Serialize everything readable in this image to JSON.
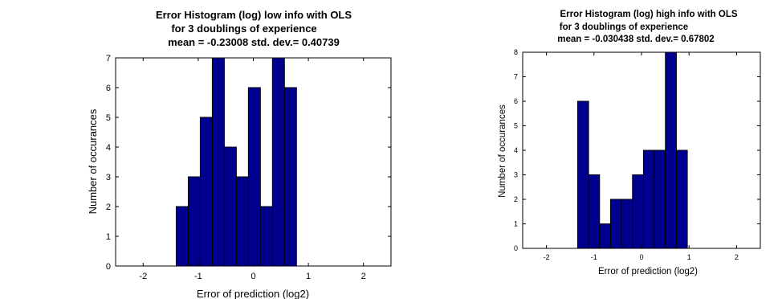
{
  "chart_data": [
    {
      "type": "bar",
      "title_lines": [
        "Error Histogram (log) low info with OLS",
        "for 3 doublings of experience",
        "mean = -0.23008 std. dev.= 0.40739"
      ],
      "xlabel": "Error of prediction (log2)",
      "ylabel": "Number of occurances",
      "xlim": [
        -2.5,
        2.5
      ],
      "ylim": [
        0,
        7
      ],
      "xticks": [
        -2,
        -1,
        0,
        1,
        2
      ],
      "yticks": [
        0,
        1,
        2,
        3,
        4,
        5,
        6,
        7
      ],
      "bin_width": 0.2184,
      "bins": [
        {
          "x": -1.2908,
          "value": 2
        },
        {
          "x": -1.0724,
          "value": 3
        },
        {
          "x": -0.854,
          "value": 5
        },
        {
          "x": -0.6356,
          "value": 7
        },
        {
          "x": -0.4172,
          "value": 4
        },
        {
          "x": -0.1988,
          "value": 3
        },
        {
          "x": 0.0196,
          "value": 6
        },
        {
          "x": 0.238,
          "value": 2
        },
        {
          "x": 0.4564,
          "value": 7
        },
        {
          "x": 0.6748,
          "value": 6
        }
      ],
      "bar_color": "#00008f",
      "grid": false
    },
    {
      "type": "bar",
      "title_lines": [
        "Error Histogram (log) high info with OLS",
        "for 3 doublings of experience",
        "mean = -0.030438 std. dev.= 0.67802"
      ],
      "xlabel": "Error of prediction (log2)",
      "ylabel": "Number of occurances",
      "xlim": [
        -2.5,
        2.5
      ],
      "ylim": [
        0,
        8
      ],
      "xticks": [
        -2,
        -1,
        0,
        1,
        2
      ],
      "yticks": [
        0,
        1,
        2,
        3,
        4,
        5,
        6,
        7,
        8
      ],
      "bin_width": 0.2308,
      "bins": [
        {
          "x": -1.2285,
          "value": 6
        },
        {
          "x": -0.9977,
          "value": 3
        },
        {
          "x": -0.7669,
          "value": 1
        },
        {
          "x": -0.5361,
          "value": 2
        },
        {
          "x": -0.3053,
          "value": 2
        },
        {
          "x": -0.0745,
          "value": 3
        },
        {
          "x": 0.1563,
          "value": 4
        },
        {
          "x": 0.3871,
          "value": 4
        },
        {
          "x": 0.6179,
          "value": 8
        },
        {
          "x": 0.8487,
          "value": 4
        }
      ],
      "bar_color": "#00008f",
      "grid": false
    }
  ]
}
